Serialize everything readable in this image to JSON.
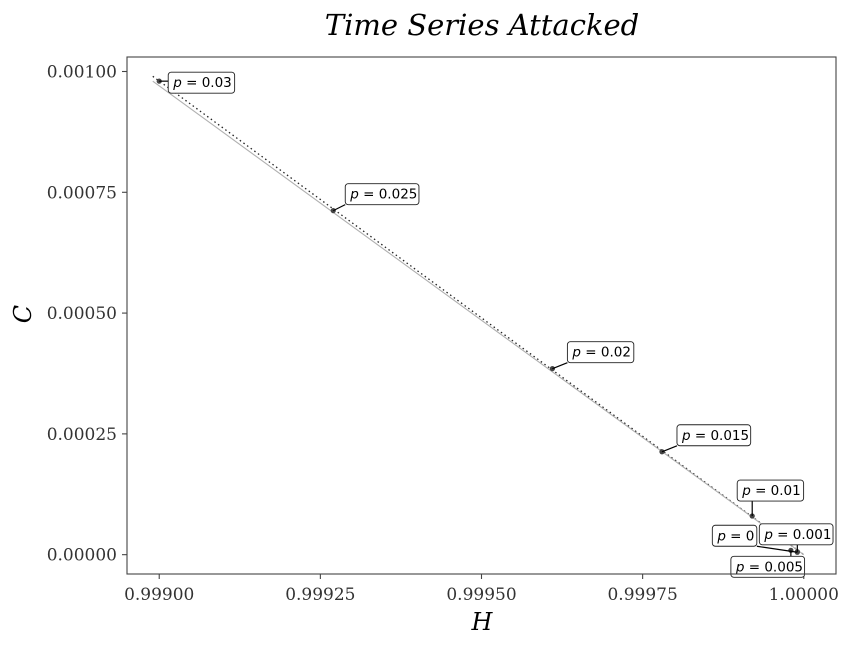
{
  "chart_data": {
    "type": "scatter",
    "title": "Time Series Attacked",
    "xlabel": "H",
    "ylabel": "C",
    "xlim": [
      0.99895,
      1.00005
    ],
    "ylim": [
      -4e-05,
      0.00103
    ],
    "x_ticks": [
      {
        "value": 0.999,
        "label": "0.99900"
      },
      {
        "value": 0.99925,
        "label": "0.99925"
      },
      {
        "value": 0.9995,
        "label": "0.99950"
      },
      {
        "value": 0.99975,
        "label": "0.99975"
      },
      {
        "value": 1.0,
        "label": "1.00000"
      }
    ],
    "y_ticks": [
      {
        "value": 0.0,
        "label": "0.00000"
      },
      {
        "value": 0.00025,
        "label": "0.00025"
      },
      {
        "value": 0.0005,
        "label": "0.00050"
      },
      {
        "value": 0.00075,
        "label": "0.00075"
      },
      {
        "value": 0.001,
        "label": "0.00100"
      }
    ],
    "grid": false,
    "points": [
      {
        "p_label": "0",
        "x": 0.99999,
        "y": 5e-06
      },
      {
        "p_label": "0.001",
        "x": 0.99999,
        "y": 6e-06
      },
      {
        "p_label": "0.005",
        "x": 0.99998,
        "y": 9e-06
      },
      {
        "p_label": "0.01",
        "x": 0.99992,
        "y": 8e-05
      },
      {
        "p_label": "0.015",
        "x": 0.99978,
        "y": 0.000213
      },
      {
        "p_label": "0.02",
        "x": 0.99961,
        "y": 0.000385
      },
      {
        "p_label": "0.025",
        "x": 0.99927,
        "y": 0.000712
      },
      {
        "p_label": "0.03",
        "x": 0.999,
        "y": 0.00098
      }
    ],
    "reference_lines": [
      {
        "style": "dotted",
        "color": "#222222",
        "from": {
          "x": 0.99899,
          "y": 0.00099
        },
        "to": {
          "x": 1.0,
          "y": 0.0
        }
      },
      {
        "style": "solid",
        "color": "#b0b0b0",
        "from": {
          "x": 0.99899,
          "y": 0.00098
        },
        "to": {
          "x": 1.0,
          "y": 0.0
        }
      }
    ],
    "colors": {
      "points": "#444444",
      "connector": "#000000",
      "frame": "#444444"
    }
  }
}
